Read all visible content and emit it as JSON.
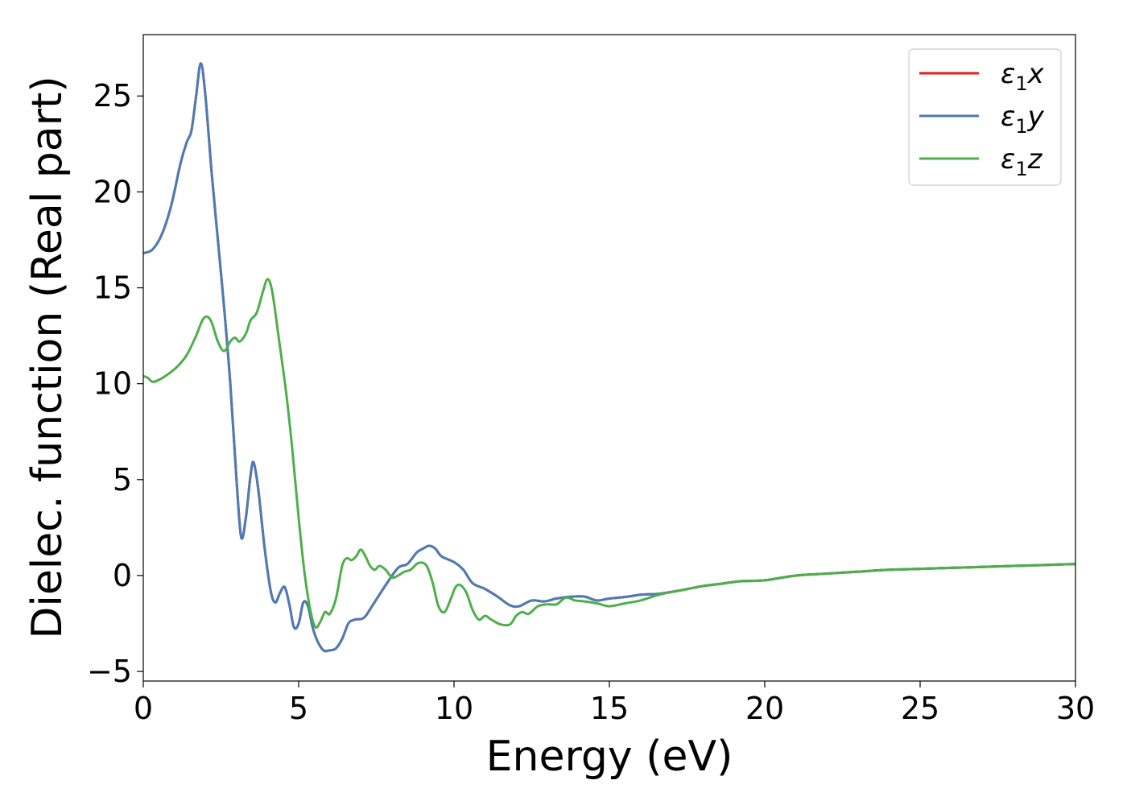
{
  "chart_data": {
    "type": "line",
    "title": "",
    "xlabel": "Energy (eV)",
    "ylabel": "Dielec. function (Real part)",
    "xlim": [
      0,
      30
    ],
    "ylim": [
      -5.5,
      28.2
    ],
    "xticks": [
      0,
      5,
      10,
      15,
      20,
      25,
      30
    ],
    "yticks": [
      -5,
      0,
      5,
      10,
      15,
      20,
      25
    ],
    "xtick_labels": [
      "0",
      "5",
      "10",
      "15",
      "20",
      "25",
      "30"
    ],
    "ytick_labels": [
      "−5",
      "0",
      "5",
      "10",
      "15",
      "20",
      "25"
    ],
    "grid": false,
    "legend_position": "top-right",
    "series": [
      {
        "name": "ε1x",
        "legend_base": "ε",
        "legend_sub": "1",
        "legend_suffix": "x",
        "color": "#e41a1c",
        "points": [
          [
            0,
            16.8
          ],
          [
            0.3,
            17.0
          ],
          [
            0.6,
            17.8
          ],
          [
            0.9,
            19.3
          ],
          [
            1.2,
            21.5
          ],
          [
            1.4,
            22.6
          ],
          [
            1.55,
            23.2
          ],
          [
            1.7,
            25.0
          ],
          [
            1.85,
            26.7
          ],
          [
            2.0,
            25.0
          ],
          [
            2.2,
            21.0
          ],
          [
            2.4,
            17.5
          ],
          [
            2.6,
            14.0
          ],
          [
            2.8,
            10.0
          ],
          [
            3.0,
            5.0
          ],
          [
            3.15,
            2.0
          ],
          [
            3.3,
            3.0
          ],
          [
            3.45,
            5.2
          ],
          [
            3.55,
            5.9
          ],
          [
            3.7,
            4.5
          ],
          [
            3.9,
            1.5
          ],
          [
            4.1,
            -0.8
          ],
          [
            4.25,
            -1.4
          ],
          [
            4.4,
            -0.9
          ],
          [
            4.55,
            -0.6
          ],
          [
            4.7,
            -1.5
          ],
          [
            4.85,
            -2.7
          ],
          [
            5.0,
            -2.5
          ],
          [
            5.15,
            -1.4
          ],
          [
            5.3,
            -1.6
          ],
          [
            5.45,
            -2.7
          ],
          [
            5.6,
            -3.4
          ],
          [
            5.8,
            -3.9
          ],
          [
            6.0,
            -3.9
          ],
          [
            6.2,
            -3.8
          ],
          [
            6.4,
            -3.3
          ],
          [
            6.6,
            -2.5
          ],
          [
            6.8,
            -2.3
          ],
          [
            7.1,
            -2.2
          ],
          [
            7.4,
            -1.5
          ],
          [
            7.8,
            -0.5
          ],
          [
            8.2,
            0.4
          ],
          [
            8.5,
            0.6
          ],
          [
            8.8,
            1.2
          ],
          [
            9.0,
            1.4
          ],
          [
            9.2,
            1.55
          ],
          [
            9.4,
            1.4
          ],
          [
            9.6,
            1.0
          ],
          [
            10.0,
            0.7
          ],
          [
            10.3,
            0.3
          ],
          [
            10.6,
            -0.4
          ],
          [
            11.0,
            -0.7
          ],
          [
            11.4,
            -1.1
          ],
          [
            11.8,
            -1.55
          ],
          [
            12.1,
            -1.6
          ],
          [
            12.5,
            -1.3
          ],
          [
            12.9,
            -1.35
          ],
          [
            13.3,
            -1.2
          ],
          [
            13.8,
            -1.1
          ],
          [
            14.2,
            -1.1
          ],
          [
            14.6,
            -1.3
          ],
          [
            15.0,
            -1.2
          ],
          [
            15.6,
            -1.1
          ],
          [
            16.0,
            -1.0
          ],
          [
            16.6,
            -0.95
          ],
          [
            17.2,
            -0.8
          ],
          [
            18.0,
            -0.55
          ],
          [
            18.5,
            -0.45
          ],
          [
            19.2,
            -0.3
          ],
          [
            20.0,
            -0.25
          ],
          [
            21.0,
            0.0
          ],
          [
            22.0,
            0.1
          ],
          [
            23.0,
            0.2
          ],
          [
            24.0,
            0.3
          ],
          [
            25.0,
            0.35
          ],
          [
            26.0,
            0.4
          ],
          [
            27.0,
            0.45
          ],
          [
            28.0,
            0.5
          ],
          [
            29.0,
            0.55
          ],
          [
            30.0,
            0.6
          ]
        ]
      },
      {
        "name": "ε1y",
        "legend_base": "ε",
        "legend_sub": "1",
        "legend_suffix": "y",
        "color": "#4a7db5",
        "points": [
          [
            0,
            16.8
          ],
          [
            0.3,
            17.0
          ],
          [
            0.6,
            17.8
          ],
          [
            0.9,
            19.3
          ],
          [
            1.2,
            21.5
          ],
          [
            1.4,
            22.6
          ],
          [
            1.55,
            23.2
          ],
          [
            1.7,
            25.0
          ],
          [
            1.85,
            26.7
          ],
          [
            2.0,
            25.0
          ],
          [
            2.2,
            21.0
          ],
          [
            2.4,
            17.5
          ],
          [
            2.6,
            14.0
          ],
          [
            2.8,
            10.0
          ],
          [
            3.0,
            5.0
          ],
          [
            3.15,
            2.0
          ],
          [
            3.3,
            3.0
          ],
          [
            3.45,
            5.2
          ],
          [
            3.55,
            5.9
          ],
          [
            3.7,
            4.5
          ],
          [
            3.9,
            1.5
          ],
          [
            4.1,
            -0.8
          ],
          [
            4.25,
            -1.4
          ],
          [
            4.4,
            -0.9
          ],
          [
            4.55,
            -0.6
          ],
          [
            4.7,
            -1.5
          ],
          [
            4.85,
            -2.7
          ],
          [
            5.0,
            -2.5
          ],
          [
            5.15,
            -1.4
          ],
          [
            5.3,
            -1.6
          ],
          [
            5.45,
            -2.7
          ],
          [
            5.6,
            -3.4
          ],
          [
            5.8,
            -3.9
          ],
          [
            6.0,
            -3.9
          ],
          [
            6.2,
            -3.8
          ],
          [
            6.4,
            -3.3
          ],
          [
            6.6,
            -2.5
          ],
          [
            6.8,
            -2.3
          ],
          [
            7.1,
            -2.2
          ],
          [
            7.4,
            -1.5
          ],
          [
            7.8,
            -0.5
          ],
          [
            8.2,
            0.4
          ],
          [
            8.5,
            0.6
          ],
          [
            8.8,
            1.2
          ],
          [
            9.0,
            1.4
          ],
          [
            9.2,
            1.55
          ],
          [
            9.4,
            1.4
          ],
          [
            9.6,
            1.0
          ],
          [
            10.0,
            0.7
          ],
          [
            10.3,
            0.3
          ],
          [
            10.6,
            -0.4
          ],
          [
            11.0,
            -0.7
          ],
          [
            11.4,
            -1.1
          ],
          [
            11.8,
            -1.55
          ],
          [
            12.1,
            -1.6
          ],
          [
            12.5,
            -1.3
          ],
          [
            12.9,
            -1.35
          ],
          [
            13.3,
            -1.2
          ],
          [
            13.8,
            -1.1
          ],
          [
            14.2,
            -1.1
          ],
          [
            14.6,
            -1.3
          ],
          [
            15.0,
            -1.2
          ],
          [
            15.6,
            -1.1
          ],
          [
            16.0,
            -1.0
          ],
          [
            16.6,
            -0.95
          ],
          [
            17.2,
            -0.8
          ],
          [
            18.0,
            -0.55
          ],
          [
            18.5,
            -0.45
          ],
          [
            19.2,
            -0.3
          ],
          [
            20.0,
            -0.25
          ],
          [
            21.0,
            0.0
          ],
          [
            22.0,
            0.1
          ],
          [
            23.0,
            0.2
          ],
          [
            24.0,
            0.3
          ],
          [
            25.0,
            0.35
          ],
          [
            26.0,
            0.4
          ],
          [
            27.0,
            0.45
          ],
          [
            28.0,
            0.5
          ],
          [
            29.0,
            0.55
          ],
          [
            30.0,
            0.6
          ]
        ]
      },
      {
        "name": "ε1z",
        "legend_base": "ε",
        "legend_sub": "1",
        "legend_suffix": "z",
        "color": "#4daf4a",
        "points": [
          [
            0,
            10.4
          ],
          [
            0.15,
            10.3
          ],
          [
            0.3,
            10.1
          ],
          [
            0.5,
            10.2
          ],
          [
            0.8,
            10.5
          ],
          [
            1.1,
            10.9
          ],
          [
            1.4,
            11.5
          ],
          [
            1.7,
            12.5
          ],
          [
            1.9,
            13.3
          ],
          [
            2.05,
            13.5
          ],
          [
            2.2,
            13.2
          ],
          [
            2.4,
            12.2
          ],
          [
            2.6,
            11.7
          ],
          [
            2.8,
            12.2
          ],
          [
            2.95,
            12.4
          ],
          [
            3.1,
            12.2
          ],
          [
            3.3,
            12.6
          ],
          [
            3.45,
            13.3
          ],
          [
            3.65,
            13.7
          ],
          [
            3.85,
            14.8
          ],
          [
            4.0,
            15.45
          ],
          [
            4.15,
            14.8
          ],
          [
            4.35,
            12.5
          ],
          [
            4.6,
            9.5
          ],
          [
            4.8,
            6.5
          ],
          [
            5.0,
            3.0
          ],
          [
            5.2,
            0.0
          ],
          [
            5.4,
            -2.0
          ],
          [
            5.55,
            -2.7
          ],
          [
            5.7,
            -2.4
          ],
          [
            5.85,
            -1.9
          ],
          [
            6.0,
            -2.0
          ],
          [
            6.2,
            -1.2
          ],
          [
            6.4,
            0.5
          ],
          [
            6.55,
            0.9
          ],
          [
            6.7,
            0.8
          ],
          [
            6.85,
            1.0
          ],
          [
            7.0,
            1.35
          ],
          [
            7.15,
            1.0
          ],
          [
            7.3,
            0.5
          ],
          [
            7.45,
            0.3
          ],
          [
            7.6,
            0.5
          ],
          [
            7.8,
            0.3
          ],
          [
            8.0,
            -0.1
          ],
          [
            8.2,
            0.0
          ],
          [
            8.4,
            0.2
          ],
          [
            8.6,
            0.3
          ],
          [
            8.85,
            0.65
          ],
          [
            9.1,
            0.55
          ],
          [
            9.3,
            -0.3
          ],
          [
            9.5,
            -1.6
          ],
          [
            9.7,
            -1.9
          ],
          [
            9.9,
            -1.2
          ],
          [
            10.05,
            -0.6
          ],
          [
            10.2,
            -0.5
          ],
          [
            10.4,
            -0.9
          ],
          [
            10.6,
            -1.8
          ],
          [
            10.8,
            -2.3
          ],
          [
            11.0,
            -2.1
          ],
          [
            11.2,
            -2.3
          ],
          [
            11.5,
            -2.55
          ],
          [
            11.8,
            -2.55
          ],
          [
            12.0,
            -2.1
          ],
          [
            12.2,
            -1.9
          ],
          [
            12.4,
            -2.0
          ],
          [
            12.7,
            -1.6
          ],
          [
            13.0,
            -1.5
          ],
          [
            13.3,
            -1.5
          ],
          [
            13.6,
            -1.15
          ],
          [
            13.9,
            -1.3
          ],
          [
            14.2,
            -1.35
          ],
          [
            14.6,
            -1.45
          ],
          [
            15.0,
            -1.6
          ],
          [
            15.5,
            -1.45
          ],
          [
            16.0,
            -1.3
          ],
          [
            16.6,
            -1.0
          ],
          [
            17.2,
            -0.8
          ],
          [
            18.0,
            -0.55
          ],
          [
            18.5,
            -0.45
          ],
          [
            19.2,
            -0.3
          ],
          [
            20.0,
            -0.25
          ],
          [
            21.0,
            0.0
          ],
          [
            22.0,
            0.1
          ],
          [
            23.0,
            0.2
          ],
          [
            24.0,
            0.3
          ],
          [
            25.0,
            0.35
          ],
          [
            26.0,
            0.4
          ],
          [
            27.0,
            0.45
          ],
          [
            28.0,
            0.5
          ],
          [
            29.0,
            0.55
          ],
          [
            30.0,
            0.6
          ]
        ]
      }
    ]
  }
}
